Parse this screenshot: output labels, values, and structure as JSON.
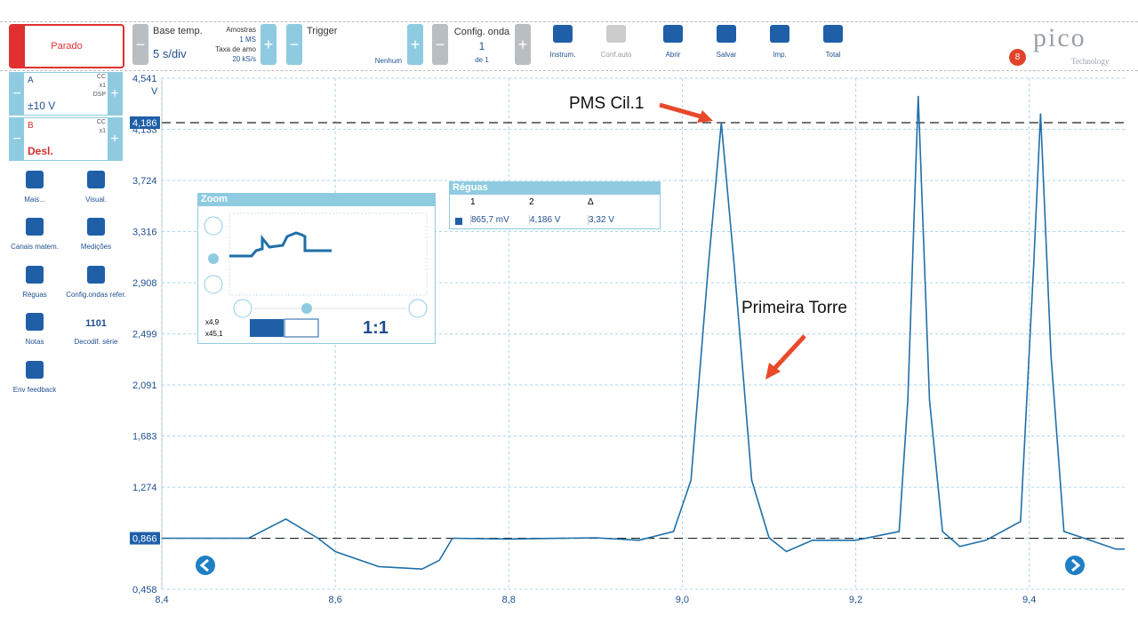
{
  "toolbar": {
    "run": "Parado",
    "timebase": {
      "label": "Base temp.",
      "value": "5 s/div",
      "samples_label": "Amostras",
      "samples": "1 MS",
      "rate_label": "Taxa de amo",
      "rate": "20 kS/s"
    },
    "trigger": {
      "label": "Trigger",
      "mode": "Nenhum"
    },
    "waveform": {
      "label": "Config. onda",
      "current": "1",
      "total": "de 1"
    },
    "tools": [
      "Instrum.",
      "Conf.auto",
      "Abrir",
      "Salvar",
      "Imp.",
      "Total"
    ],
    "logo": "pico",
    "logo_sub": "Technology",
    "badge": "8"
  },
  "channels": [
    {
      "name": "A",
      "range": "±10 V",
      "coupling": "CC",
      "probe": "x1",
      "extra": "DSP"
    },
    {
      "name": "B",
      "range": "Desl.",
      "coupling": "CC",
      "probe": "x1"
    }
  ],
  "sidebar": [
    "Mais...",
    "Visual.",
    "Canais matem.",
    "Medições",
    "Réguas",
    "Config.ondas refer.",
    "Notas",
    "Decodif. série",
    "Env feedback"
  ],
  "sidebar_icon_text": "1101",
  "zoom_panel": {
    "title": "Zoom",
    "zoom_x": "x4,9",
    "zoom_y": "x45,1",
    "reset": "1:1"
  },
  "rulers_panel": {
    "title": "Réguas",
    "headers": [
      "1",
      "2",
      "Δ"
    ],
    "row": [
      "865,7 mV",
      "4,186 V",
      "3,32 V"
    ]
  },
  "chart_data": {
    "type": "line",
    "unit": "V",
    "color": "#1f6fa8",
    "annotations": [
      "PMS Cil.1",
      "Primeira Torre"
    ],
    "rulers": [
      {
        "value": 4.186,
        "label": "4,186"
      },
      {
        "value": 0.866,
        "label": "0,866"
      }
    ],
    "x": [
      8.4,
      8.5,
      8.543,
      8.58,
      8.6,
      8.65,
      8.7,
      8.72,
      8.735,
      8.8,
      8.9,
      8.95,
      8.99,
      9.01,
      9.03,
      9.045,
      9.06,
      9.08,
      9.1,
      9.12,
      9.15,
      9.2,
      9.25,
      9.26,
      9.272,
      9.285,
      9.3,
      9.32,
      9.35,
      9.39,
      9.405,
      9.413,
      9.425,
      9.44,
      9.47,
      9.5,
      9.51
    ],
    "values": [
      0.866,
      0.866,
      1.02,
      0.866,
      0.76,
      0.64,
      0.62,
      0.69,
      0.866,
      0.86,
      0.87,
      0.85,
      0.92,
      1.33,
      3.04,
      4.186,
      3.04,
      1.33,
      0.87,
      0.76,
      0.85,
      0.85,
      0.92,
      1.97,
      4.4,
      1.97,
      0.92,
      0.8,
      0.85,
      1.0,
      3.04,
      4.26,
      2.33,
      0.92,
      0.85,
      0.78,
      0.78
    ],
    "xlim": [
      8.4,
      9.51
    ],
    "ylim": [
      0.458,
      4.541
    ],
    "xticks": [
      {
        "value": 8.4,
        "label": "8,4"
      },
      {
        "value": 8.6,
        "label": "8,6"
      },
      {
        "value": 8.8,
        "label": "8,8"
      },
      {
        "value": 9.0,
        "label": "9,0"
      },
      {
        "value": 9.2,
        "label": "9,2"
      },
      {
        "value": 9.4,
        "label": "9,4"
      }
    ],
    "yticks": [
      {
        "value": 4.541,
        "label": "4,541"
      },
      {
        "value": 4.133,
        "label": "4,133"
      },
      {
        "value": 3.724,
        "label": "3,724"
      },
      {
        "value": 3.316,
        "label": "3,316"
      },
      {
        "value": 2.908,
        "label": "2,908"
      },
      {
        "value": 2.499,
        "label": "2,499"
      },
      {
        "value": 2.091,
        "label": "2,091"
      },
      {
        "value": 1.683,
        "label": "1,683"
      },
      {
        "value": 1.274,
        "label": "1,274"
      },
      {
        "value": 0.866,
        "label": "0,866"
      },
      {
        "value": 0.458,
        "label": "0,458"
      }
    ],
    "grid": true
  }
}
